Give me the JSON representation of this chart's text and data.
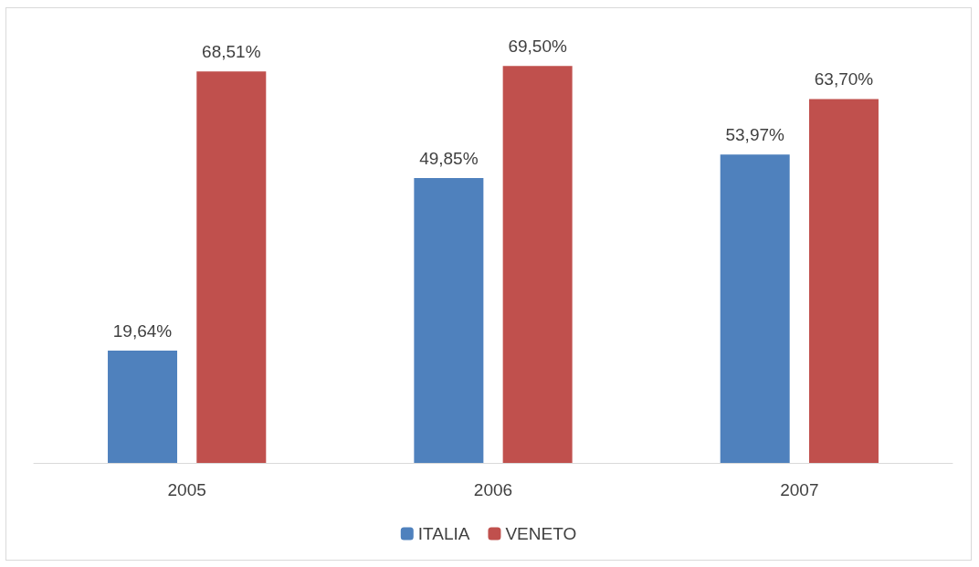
{
  "chart_data": {
    "type": "bar",
    "categories": [
      "2005",
      "2006",
      "2007"
    ],
    "series": [
      {
        "name": "ITALIA",
        "color": "#4f81bd",
        "values": [
          19.64,
          49.85,
          53.97
        ],
        "value_labels": [
          "19,64%",
          "49,85%",
          "53,97%"
        ]
      },
      {
        "name": "VENETO",
        "color": "#c0504d",
        "values": [
          68.51,
          69.5,
          63.7
        ],
        "value_labels": [
          "68,51%",
          "69,50%",
          "63,70%"
        ]
      }
    ],
    "grid": false,
    "legend": "bottom"
  }
}
